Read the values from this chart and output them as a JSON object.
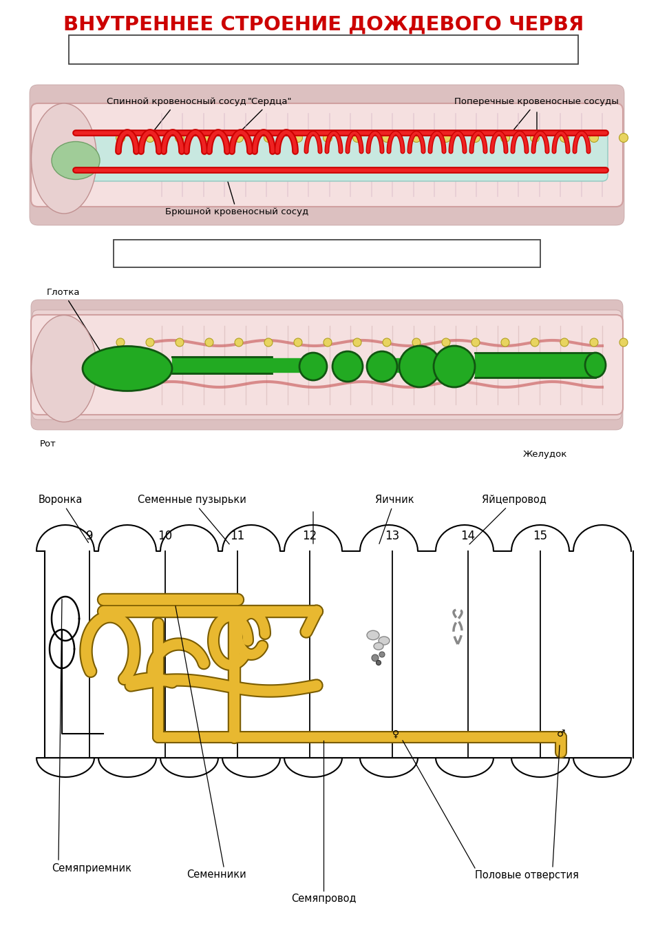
{
  "title": "ВНУТРЕННЕЕ СТРОЕНИЕ ДОЖДЕВОГО ЧЕРВЯ",
  "title_color": "#cc0000",
  "title_fontsize": 21,
  "bg_color": "#ffffff",
  "section1_labels": {
    "top_left": "Спинной кровеносный сосуд",
    "top_mid": "\"Сердца\"",
    "top_right": "Поперечные кровеносные сосуды",
    "bottom_mid": "Брюшной кровеносный сосуд"
  },
  "section2_labels": {
    "left": "Глотка",
    "bottom_left": "Рот",
    "bottom_right": "Желудок"
  },
  "section3_labels": {
    "voronka": "Воронка",
    "semennye_puz": "Семенные пузырьки",
    "yachnik": "Яичник",
    "yatsepr": "Яйцепровод",
    "semyapriemnik": "Семяприемник",
    "semenniki": "Семенники",
    "semyaprovod": "Семяпровод",
    "polovye_otv": "Половые отверстия"
  },
  "segment_numbers": [
    "9",
    "10",
    "11",
    "12",
    "13",
    "14",
    "15"
  ],
  "gold_color": "#e8b830",
  "gold_edge": "#7a5c00"
}
